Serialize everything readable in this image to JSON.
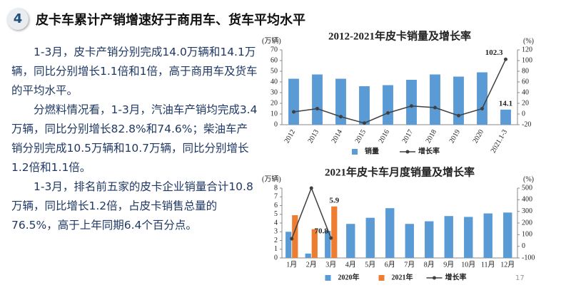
{
  "header": {
    "number": "4",
    "title": "皮卡车累计产销增速好于商用车、货车平均水平"
  },
  "paragraphs": [
    "1-3月，皮卡产销分别完成14.0万辆和14.1万辆，同比分别增长1.1倍和1倍，高于商用车及货车的平均水平。",
    "分燃料情况看，1-3月，汽油车产销均完成3.4万辆，同比分别增长82.8%和74.6%；柴油车产销分别完成10.5万辆和10.7万辆，同比分别增长1.2倍和1.1倍。",
    "1-3月，排名前五家的皮卡企业销量合计10.8万辆，同比增长1.2倍，占皮卡销售总量的76.5%，高于上年同期6.4个百分点。"
  ],
  "page_number": "17",
  "chart_data": [
    {
      "type": "bar",
      "title": "2012-2021年皮卡销量及增长率",
      "y_label": "(万辆)",
      "y2_label": "(%)",
      "categories": [
        "2012",
        "2013",
        "2014",
        "2015",
        "2016",
        "2017",
        "2018",
        "2019",
        "2020",
        "2021.1-3"
      ],
      "series": [
        {
          "name": "销量",
          "type": "bar",
          "color": "#5b9bd5",
          "values": [
            43,
            47,
            43,
            36,
            37,
            42,
            47,
            45,
            49,
            14.1
          ],
          "value_labels": [
            null,
            null,
            null,
            null,
            null,
            null,
            null,
            null,
            null,
            "14.1"
          ]
        },
        {
          "name": "增长率",
          "type": "line",
          "axis": "y2",
          "color": "#404040",
          "values": [
            4,
            10,
            -5,
            -17,
            2,
            15,
            12,
            -3,
            10,
            102.3
          ],
          "value_labels": [
            null,
            null,
            null,
            null,
            null,
            null,
            null,
            null,
            null,
            "102.3"
          ]
        }
      ],
      "ylim": [
        0,
        70
      ],
      "yticks": [
        0,
        10,
        20,
        30,
        40,
        50,
        60,
        70
      ],
      "y2lim": [
        -20,
        120
      ],
      "y2ticks": [
        -20,
        0,
        20,
        40,
        60,
        80,
        100,
        120
      ],
      "rotate_x_labels": true
    },
    {
      "type": "bar",
      "title": "2021年皮卡车月度销量及增长率",
      "y_label": "(万辆)",
      "y2_label": "(%)",
      "categories": [
        "1月",
        "2月",
        "3月",
        "4月",
        "5月",
        "6月",
        "7月",
        "8月",
        "9月",
        "10月",
        "11月",
        "12月"
      ],
      "series": [
        {
          "name": "2020年",
          "type": "bar",
          "color": "#5b9bd5",
          "values": [
            3.0,
            0.5,
            3.1,
            3.9,
            4.6,
            5.7,
            3.9,
            4.2,
            4.8,
            4.7,
            5.1,
            5.2
          ]
        },
        {
          "name": "2021年",
          "type": "bar",
          "color": "#ed7d31",
          "values": [
            4.9,
            3.3,
            5.9,
            null,
            null,
            null,
            null,
            null,
            null,
            null,
            null,
            null
          ],
          "value_labels": [
            null,
            null,
            "5.9",
            null,
            null,
            null,
            null,
            null,
            null,
            null,
            null,
            null
          ]
        },
        {
          "name": "增长率",
          "type": "line",
          "axis": "y2",
          "color": "#404040",
          "values": [
            65,
            500,
            70.8,
            null,
            null,
            null,
            null,
            null,
            null,
            null,
            null,
            null
          ],
          "value_labels": [
            null,
            null,
            "70.8",
            null,
            null,
            null,
            null,
            null,
            null,
            null,
            null,
            null
          ]
        }
      ],
      "ylim": [
        0,
        8
      ],
      "yticks": [
        0,
        1,
        2,
        3,
        4,
        5,
        6,
        7,
        8
      ],
      "y2lim": [
        -100,
        500
      ],
      "y2ticks": [
        -100,
        0,
        100,
        200,
        300,
        400,
        500
      ],
      "rotate_x_labels": false
    }
  ]
}
